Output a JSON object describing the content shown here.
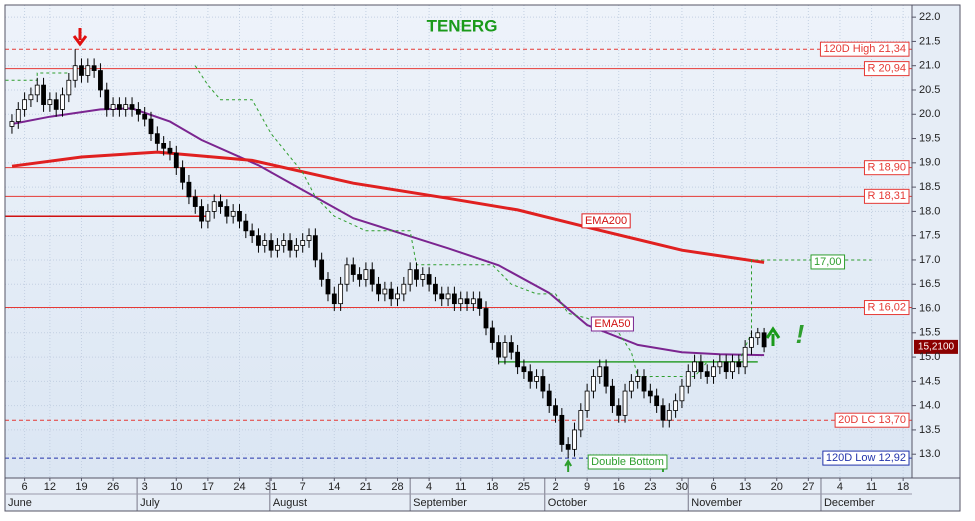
{
  "chart_data": {
    "type": "candlestick",
    "title": "TENERG",
    "x": [
      -1,
      0,
      1,
      2,
      3,
      4,
      5,
      6,
      7,
      8,
      9,
      10,
      11,
      12,
      13,
      14,
      15,
      16,
      17,
      18,
      19,
      20,
      21,
      22,
      23,
      24,
      25,
      26,
      27,
      28,
      29,
      30,
      31,
      32,
      33,
      34,
      35,
      36,
      37,
      38,
      39,
      40,
      41,
      42,
      43,
      44,
      45,
      46,
      47,
      48,
      49,
      50,
      51,
      52,
      53,
      54,
      55,
      56,
      57,
      58,
      59,
      60,
      61,
      62,
      63,
      64,
      65,
      66,
      67,
      68,
      69,
      70,
      71,
      72,
      73,
      74,
      75,
      76,
      77,
      78,
      79,
      80,
      81,
      82,
      83,
      84,
      85,
      86,
      87,
      88,
      89,
      90,
      91,
      92,
      93,
      94,
      95,
      96,
      97,
      98,
      99,
      100,
      101,
      102,
      103,
      104,
      105,
      106,
      107,
      108,
      109,
      110,
      111,
      112,
      113,
      114,
      115,
      116,
      117,
      118
    ],
    "open": [
      19.75,
      19.85,
      20.1,
      20.3,
      20.4,
      20.6,
      20.2,
      20.3,
      20.1,
      20.4,
      20.7,
      21.0,
      20.8,
      21.0,
      20.9,
      20.5,
      20.1,
      20.2,
      20.1,
      20.2,
      20.1,
      20.0,
      19.9,
      19.6,
      19.4,
      19.3,
      19.2,
      18.9,
      18.6,
      18.3,
      18.1,
      17.8,
      18.0,
      18.2,
      18.1,
      17.9,
      18.0,
      17.8,
      17.6,
      17.5,
      17.3,
      17.4,
      17.2,
      17.3,
      17.4,
      17.2,
      17.3,
      17.4,
      17.5,
      17.0,
      16.6,
      16.3,
      16.1,
      16.5,
      16.9,
      16.7,
      16.6,
      16.8,
      16.5,
      16.3,
      16.4,
      16.2,
      16.3,
      16.5,
      16.8,
      16.6,
      16.7,
      16.5,
      16.3,
      16.2,
      16.3,
      16.1,
      16.2,
      16.1,
      16.2,
      16.0,
      15.6,
      15.3,
      15.0,
      15.3,
      15.1,
      14.8,
      14.7,
      14.5,
      14.6,
      14.3,
      14.0,
      13.8,
      13.2,
      13.1,
      13.5,
      13.9,
      14.3,
      14.6,
      14.8,
      14.4,
      14.0,
      13.8,
      14.3,
      14.5,
      14.6,
      14.3,
      14.2,
      14.0,
      13.7,
      13.9,
      14.1,
      14.4,
      14.7,
      14.9,
      14.7,
      14.6,
      14.8,
      14.9,
      14.7,
      14.9,
      14.8,
      15.2,
      15.4,
      15.5
    ],
    "high": [
      20.0,
      20.25,
      20.45,
      20.55,
      20.75,
      20.75,
      20.45,
      20.45,
      20.55,
      20.85,
      21.34,
      21.15,
      21.15,
      21.15,
      21.05,
      20.65,
      20.35,
      20.35,
      20.35,
      20.35,
      20.25,
      20.15,
      20.05,
      19.75,
      19.55,
      19.45,
      19.35,
      19.05,
      18.75,
      18.45,
      18.25,
      18.15,
      18.35,
      18.35,
      18.25,
      18.15,
      18.15,
      17.95,
      17.75,
      17.65,
      17.55,
      17.55,
      17.45,
      17.55,
      17.55,
      17.45,
      17.55,
      17.65,
      17.65,
      17.15,
      16.75,
      16.45,
      16.65,
      17.05,
      17.05,
      16.85,
      16.95,
      16.95,
      16.65,
      16.55,
      16.55,
      16.45,
      16.65,
      16.95,
      16.95,
      16.85,
      16.85,
      16.65,
      16.45,
      16.45,
      16.45,
      16.35,
      16.35,
      16.35,
      16.35,
      16.15,
      15.75,
      15.45,
      15.45,
      15.45,
      15.25,
      14.95,
      14.85,
      14.75,
      14.75,
      14.45,
      14.15,
      13.95,
      13.35,
      13.65,
      14.05,
      14.45,
      14.75,
      14.95,
      14.95,
      14.55,
      14.15,
      14.45,
      14.65,
      14.75,
      14.75,
      14.45,
      14.35,
      14.15,
      14.05,
      14.25,
      14.55,
      14.85,
      15.05,
      15.05,
      14.85,
      14.95,
      15.05,
      15.05,
      15.05,
      15.05,
      15.35,
      15.55,
      15.6,
      15.6
    ],
    "low": [
      19.6,
      19.7,
      19.95,
      20.15,
      20.25,
      20.05,
      20.05,
      19.95,
      19.95,
      20.25,
      20.55,
      20.65,
      20.65,
      20.75,
      20.35,
      19.95,
      19.95,
      19.95,
      19.95,
      19.95,
      19.85,
      19.75,
      19.45,
      19.25,
      19.15,
      19.05,
      18.75,
      18.45,
      18.15,
      17.95,
      17.65,
      17.65,
      17.85,
      17.95,
      17.75,
      17.75,
      17.65,
      17.45,
      17.35,
      17.15,
      17.15,
      17.05,
      17.05,
      17.15,
      17.05,
      17.05,
      17.15,
      17.25,
      16.85,
      16.45,
      16.15,
      15.95,
      15.95,
      16.35,
      16.55,
      16.45,
      16.45,
      16.35,
      16.15,
      16.15,
      16.05,
      16.05,
      16.15,
      16.35,
      16.45,
      16.45,
      16.35,
      16.15,
      16.05,
      16.05,
      15.95,
      15.95,
      15.95,
      15.95,
      15.85,
      15.45,
      15.15,
      14.85,
      14.85,
      14.95,
      14.65,
      14.55,
      14.35,
      14.35,
      14.15,
      13.85,
      13.65,
      13.05,
      12.92,
      12.95,
      13.35,
      13.75,
      14.15,
      14.45,
      14.25,
      13.85,
      13.65,
      13.65,
      14.15,
      14.35,
      14.15,
      14.05,
      13.85,
      13.55,
      13.55,
      13.75,
      13.95,
      14.25,
      14.55,
      14.55,
      14.45,
      14.45,
      14.65,
      14.55,
      14.55,
      14.65,
      14.65,
      15.05,
      15.25,
      15.1
    ],
    "close": [
      19.85,
      20.1,
      20.3,
      20.4,
      20.6,
      20.2,
      20.3,
      20.1,
      20.4,
      20.7,
      21.0,
      20.8,
      21.0,
      20.9,
      20.5,
      20.1,
      20.2,
      20.1,
      20.2,
      20.1,
      20.0,
      19.9,
      19.6,
      19.4,
      19.3,
      19.2,
      18.9,
      18.6,
      18.3,
      18.1,
      17.8,
      18.0,
      18.2,
      18.1,
      17.9,
      18.0,
      17.8,
      17.6,
      17.5,
      17.3,
      17.4,
      17.2,
      17.3,
      17.4,
      17.2,
      17.3,
      17.4,
      17.5,
      17.0,
      16.6,
      16.3,
      16.1,
      16.5,
      16.9,
      16.7,
      16.6,
      16.8,
      16.5,
      16.3,
      16.4,
      16.2,
      16.3,
      16.5,
      16.8,
      16.6,
      16.7,
      16.5,
      16.3,
      16.2,
      16.3,
      16.1,
      16.2,
      16.1,
      16.2,
      16.0,
      15.6,
      15.3,
      15.0,
      15.3,
      15.1,
      14.8,
      14.7,
      14.5,
      14.6,
      14.3,
      14.0,
      13.8,
      13.2,
      13.1,
      13.5,
      13.9,
      14.3,
      14.6,
      14.8,
      14.4,
      14.0,
      13.8,
      14.3,
      14.5,
      14.6,
      14.3,
      14.2,
      14.0,
      13.7,
      13.9,
      14.1,
      14.4,
      14.7,
      14.9,
      14.7,
      14.6,
      14.8,
      14.9,
      14.7,
      14.9,
      14.8,
      15.2,
      15.4,
      15.5,
      15.21
    ],
    "up_color": "#ffffff",
    "down_color": "#000000",
    "xlim": [
      -2.1,
      141.4
    ],
    "ylim": [
      12.51,
      22.25
    ],
    "grid": true,
    "yticks": [
      {
        "value": 13,
        "label": "13.0"
      },
      {
        "value": 13.5,
        "label": "13.5"
      },
      {
        "value": 14,
        "label": "14.0"
      },
      {
        "value": 14.5,
        "label": "14.5"
      },
      {
        "value": 15,
        "label": "15.0"
      },
      {
        "value": 15.5,
        "label": "15.5"
      },
      {
        "value": 16,
        "label": "16.0"
      },
      {
        "value": 16.5,
        "label": "16.5"
      },
      {
        "value": 17,
        "label": "17.0"
      },
      {
        "value": 17.5,
        "label": "17.5"
      },
      {
        "value": 18,
        "label": "18.0"
      },
      {
        "value": 18.5,
        "label": "18.5"
      },
      {
        "value": 19,
        "label": "19.0"
      },
      {
        "value": 19.5,
        "label": "19.5"
      },
      {
        "value": 20,
        "label": "20.0"
      },
      {
        "value": 20.5,
        "label": "20.5"
      },
      {
        "value": 21,
        "label": "21.0"
      },
      {
        "value": 21.5,
        "label": "21.5"
      },
      {
        "value": 22,
        "label": "22.0"
      }
    ],
    "xticks": [
      {
        "value": 1,
        "label": "6"
      },
      {
        "value": 5,
        "label": "12"
      },
      {
        "value": 10,
        "label": "19"
      },
      {
        "value": 15,
        "label": "26"
      },
      {
        "value": 20,
        "label": "3"
      },
      {
        "value": 25,
        "label": "10"
      },
      {
        "value": 30,
        "label": "17"
      },
      {
        "value": 35,
        "label": "24"
      },
      {
        "value": 40,
        "label": "31"
      },
      {
        "value": 45,
        "label": "7"
      },
      {
        "value": 50,
        "label": "14"
      },
      {
        "value": 55,
        "label": "21"
      },
      {
        "value": 60,
        "label": "28"
      },
      {
        "value": 65,
        "label": "4"
      },
      {
        "value": 70,
        "label": "11"
      },
      {
        "value": 75,
        "label": "18"
      },
      {
        "value": 80,
        "label": "25"
      },
      {
        "value": 85,
        "label": "2"
      },
      {
        "value": 90,
        "label": "9"
      },
      {
        "value": 95,
        "label": "16"
      },
      {
        "value": 100,
        "label": "23"
      },
      {
        "value": 105,
        "label": "30"
      },
      {
        "value": 110,
        "label": "6"
      },
      {
        "value": 115,
        "label": "13"
      },
      {
        "value": 120,
        "label": "20"
      },
      {
        "value": 125,
        "label": "27"
      },
      {
        "value": 130,
        "label": "4"
      },
      {
        "value": 135,
        "label": "11"
      },
      {
        "value": 140,
        "label": "18"
      }
    ],
    "months": [
      {
        "value": -2.1,
        "label": "June"
      },
      {
        "value": 18.8,
        "label": "July"
      },
      {
        "value": 39.8,
        "label": "August"
      },
      {
        "value": 62,
        "label": "September"
      },
      {
        "value": 83.3,
        "label": "October"
      },
      {
        "value": 106,
        "label": "November"
      },
      {
        "value": 127,
        "label": "December"
      }
    ],
    "lines": [
      {
        "name": "EMA50",
        "color": "#7b2590",
        "width": 2,
        "x": [
          -1,
          5,
          13,
          18,
          24,
          29,
          38,
          45,
          53,
          60,
          68,
          76,
          84,
          90,
          98,
          105,
          111,
          118
        ],
        "values": [
          19.8,
          19.95,
          20.1,
          20.12,
          19.85,
          19.47,
          18.95,
          18.44,
          17.86,
          17.57,
          17.24,
          16.89,
          16.32,
          15.66,
          15.25,
          15.1,
          15.06,
          15.04
        ]
      },
      {
        "name": "EMA200",
        "color": "#e02020",
        "width": 3,
        "x": [
          -1,
          10,
          22,
          37,
          53,
          68,
          79,
          92,
          105,
          118
        ],
        "values": [
          18.93,
          19.12,
          19.22,
          19.05,
          18.58,
          18.27,
          18.03,
          17.61,
          17.2,
          16.95
        ]
      },
      {
        "color": "#2e9e2e",
        "width": 1,
        "dash": "3,3",
        "level_label": "17,00",
        "x": [
          -2,
          3,
          3,
          8,
          18,
          28,
          30,
          32,
          37,
          40,
          45,
          47,
          50,
          55,
          62,
          63,
          75,
          78,
          82,
          85,
          87,
          90,
          95,
          97,
          98,
          107,
          109,
          114,
          116,
          116,
          135
        ],
        "values": [
          20.7,
          20.7,
          20.85,
          20.85,
          null,
          21.0,
          20.6,
          20.3,
          20.3,
          19.6,
          18.8,
          18.3,
          17.9,
          17.6,
          17.6,
          16.9,
          16.9,
          16.5,
          16.3,
          16.3,
          15.9,
          15.8,
          15.5,
          15.1,
          14.6,
          14.6,
          14.9,
          14.9,
          15.5,
          17.0,
          17.0
        ]
      }
    ],
    "levels": [
      {
        "value": 21.34,
        "label": "120D High 21,34",
        "color": "#e53935",
        "dash": "4,3"
      },
      {
        "value": 20.94,
        "label": "R 20,94",
        "color": "#e53935"
      },
      {
        "value": 18.9,
        "label": "R 18,90",
        "color": "#e53935"
      },
      {
        "value": 18.31,
        "label": "R 18,31",
        "color": "#e53935"
      },
      {
        "value": 16.02,
        "label": "R 16,02",
        "color": "#e53935"
      },
      {
        "value": 13.7,
        "label": "20D LC 13,70",
        "color": "#e53935",
        "dash": "4,3"
      },
      {
        "value": 12.92,
        "label": "120D Low 12,92",
        "color": "#2233aa",
        "dash": "4,3"
      }
    ],
    "segments": [
      {
        "x": [
          -2.1,
          30
        ],
        "value": 17.9,
        "color": "#d01010"
      },
      {
        "x": [
          76,
          117
        ],
        "value": 14.9,
        "color": "#2e9e2e"
      }
    ],
    "last_price": {
      "value": 15.21,
      "label": "15,2100"
    },
    "annotations": [
      {
        "text": "Double Bottom",
        "x": [
          87,
          102
        ],
        "color": "#2e9e2e"
      },
      {
        "text": "!",
        "color": "#2e9e2e"
      }
    ]
  }
}
